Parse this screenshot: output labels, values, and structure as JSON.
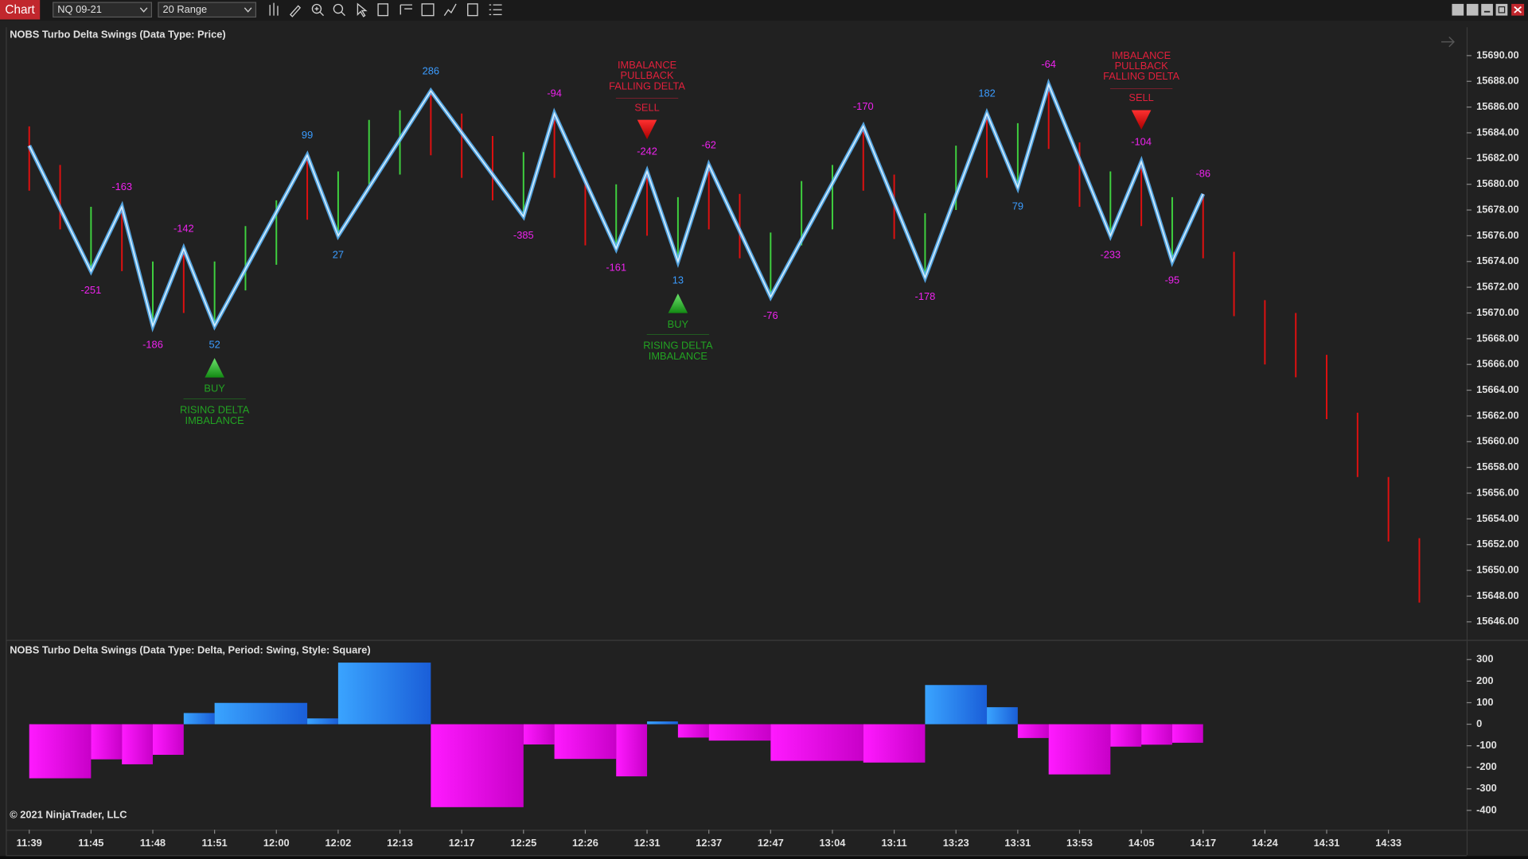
{
  "toolbar": {
    "app_label": "Chart",
    "instrument": "NQ 09-21",
    "bar_type": "20 Range"
  },
  "copyright": "© 2021 NinjaTrader, LLC",
  "chart_data": [
    {
      "type": "candlestick",
      "title": "NOBS Turbo Delta Swings (Data Type: Price)",
      "categories": [
        "11:39",
        null,
        "11:45",
        null,
        "11:48",
        null,
        "11:51",
        null,
        "12:00",
        null,
        "12:02",
        null,
        "12:13",
        null,
        "12:17",
        null,
        "12:25",
        null,
        "12:26",
        null,
        "12:31",
        null,
        "12:37",
        null,
        "12:47",
        null,
        "13:04",
        null,
        "13:11",
        null,
        "13:23",
        null,
        "13:31",
        null,
        "13:53",
        null,
        "14:05",
        null,
        "14:17",
        null,
        "14:24",
        null,
        "14:31",
        null,
        "14:33",
        null
      ],
      "open": [
        15684.5,
        15681.5,
        15673.25,
        15678.25,
        15669,
        15675,
        15669,
        15671.75,
        15673.75,
        15682.25,
        15676,
        15680,
        15680.75,
        15687.25,
        15685.5,
        15683.75,
        15677.5,
        15685.5,
        15680.25,
        15675,
        15681,
        15674,
        15681.5,
        15679.25,
        15671.25,
        15675.25,
        15676.5,
        15684.5,
        15680.75,
        15672.75,
        15678,
        15685.5,
        15679.75,
        15687.75,
        15683.25,
        15676,
        15681.75,
        15674,
        15679.25,
        15674.75,
        15671,
        15670,
        15666.75,
        15662.25,
        15657.25,
        15652.5
      ],
      "close": [
        15679.5,
        15676.5,
        15678.25,
        15673.25,
        15674,
        15670,
        15674,
        15676.75,
        15678.75,
        15677.25,
        15681,
        15685,
        15685.75,
        15682.25,
        15680.5,
        15678.75,
        15682.5,
        15680.5,
        15675.25,
        15680,
        15676,
        15679,
        15676.5,
        15674.25,
        15676.25,
        15680.25,
        15681.5,
        15679.5,
        15675.75,
        15677.75,
        15683,
        15680.5,
        15684.75,
        15682.75,
        15678.25,
        15681,
        15676.75,
        15679,
        15674.25,
        15669.75,
        15666,
        15665,
        15661.75,
        15657.25,
        15652.25,
        15647.5
      ],
      "up_color": "#3fd23f",
      "down_color": "#e01010",
      "ylim": [
        15644.6,
        15692.2
      ],
      "yticks": [
        {
          "value": 15690,
          "label": "15690.00"
        },
        {
          "value": 15688,
          "label": "15688.00"
        },
        {
          "value": 15686,
          "label": "15686.00"
        },
        {
          "value": 15684,
          "label": "15684.00"
        },
        {
          "value": 15682,
          "label": "15682.00"
        },
        {
          "value": 15680,
          "label": "15680.00"
        },
        {
          "value": 15678,
          "label": "15678.00"
        },
        {
          "value": 15676,
          "label": "15676.00"
        },
        {
          "value": 15674,
          "label": "15674.00"
        },
        {
          "value": 15672,
          "label": "15672.00"
        },
        {
          "value": 15670,
          "label": "15670.00"
        },
        {
          "value": 15668,
          "label": "15668.00"
        },
        {
          "value": 15666,
          "label": "15666.00"
        },
        {
          "value": 15664,
          "label": "15664.00"
        },
        {
          "value": 15662,
          "label": "15662.00"
        },
        {
          "value": 15660,
          "label": "15660.00"
        },
        {
          "value": 15658,
          "label": "15658.00"
        },
        {
          "value": 15656,
          "label": "15656.00"
        },
        {
          "value": 15654,
          "label": "15654.00"
        },
        {
          "value": 15652,
          "label": "15652.00"
        },
        {
          "value": 15650,
          "label": "15650.00"
        },
        {
          "value": 15648,
          "label": "15648.00"
        },
        {
          "value": 15646,
          "label": "15646.00"
        }
      ],
      "swings": {
        "color": "#5ab8ff",
        "x": [
          0,
          2,
          3,
          4,
          5,
          6,
          9,
          10,
          13,
          16,
          17,
          19,
          20,
          21,
          22,
          24,
          27,
          29,
          31,
          32,
          33,
          35,
          36,
          37,
          38
        ],
        "values": [
          15683,
          15673.25,
          15678.25,
          15669,
          15675,
          15669,
          15682.25,
          15676,
          15687.25,
          15677.5,
          15685.5,
          15675,
          15681,
          15674,
          15681.5,
          15671.25,
          15684.5,
          15672.75,
          15685.5,
          15679.75,
          15687.75,
          15676,
          15681.75,
          15674,
          15679.25
        ],
        "deltas": [
          null,
          -251,
          -163,
          -186,
          -142,
          52,
          99,
          27,
          286,
          -385,
          -94,
          -161,
          -242,
          13,
          -62,
          -76,
          -170,
          -178,
          182,
          79,
          -64,
          -233,
          -104,
          -95,
          -86
        ],
        "positive_color": "#3b9cff",
        "negative_color": "#ee22ee"
      },
      "signals": [
        {
          "x": 6,
          "type": "BUY",
          "text": [
            "RISING DELTA",
            "IMBALANCE"
          ]
        },
        {
          "x": 20,
          "type": "SELL",
          "text": [
            "IMBALANCE",
            "PULLBACK",
            "FALLING DELTA"
          ]
        },
        {
          "x": 21,
          "type": "BUY",
          "text": [
            "RISING DELTA",
            "IMBALANCE"
          ]
        },
        {
          "x": 36,
          "type": "SELL",
          "text": [
            "IMBALANCE",
            "PULLBACK",
            "FALLING DELTA"
          ]
        }
      ],
      "signal_colors": {
        "BUY": "#22a322",
        "SELL": "#e0203c"
      }
    },
    {
      "type": "bar",
      "title": "NOBS Turbo Delta Swings (Data Type: Delta, Period: Swing, Style: Square)",
      "ylim": [
        -490,
        378
      ],
      "yticks": [
        300,
        200,
        100,
        0,
        -100,
        -200,
        -300,
        -400
      ],
      "positive_colors": [
        "#3aa4ff",
        "#1a5ed8"
      ],
      "negative_colors": [
        "#ff1aff",
        "#c800c8"
      ]
    }
  ]
}
